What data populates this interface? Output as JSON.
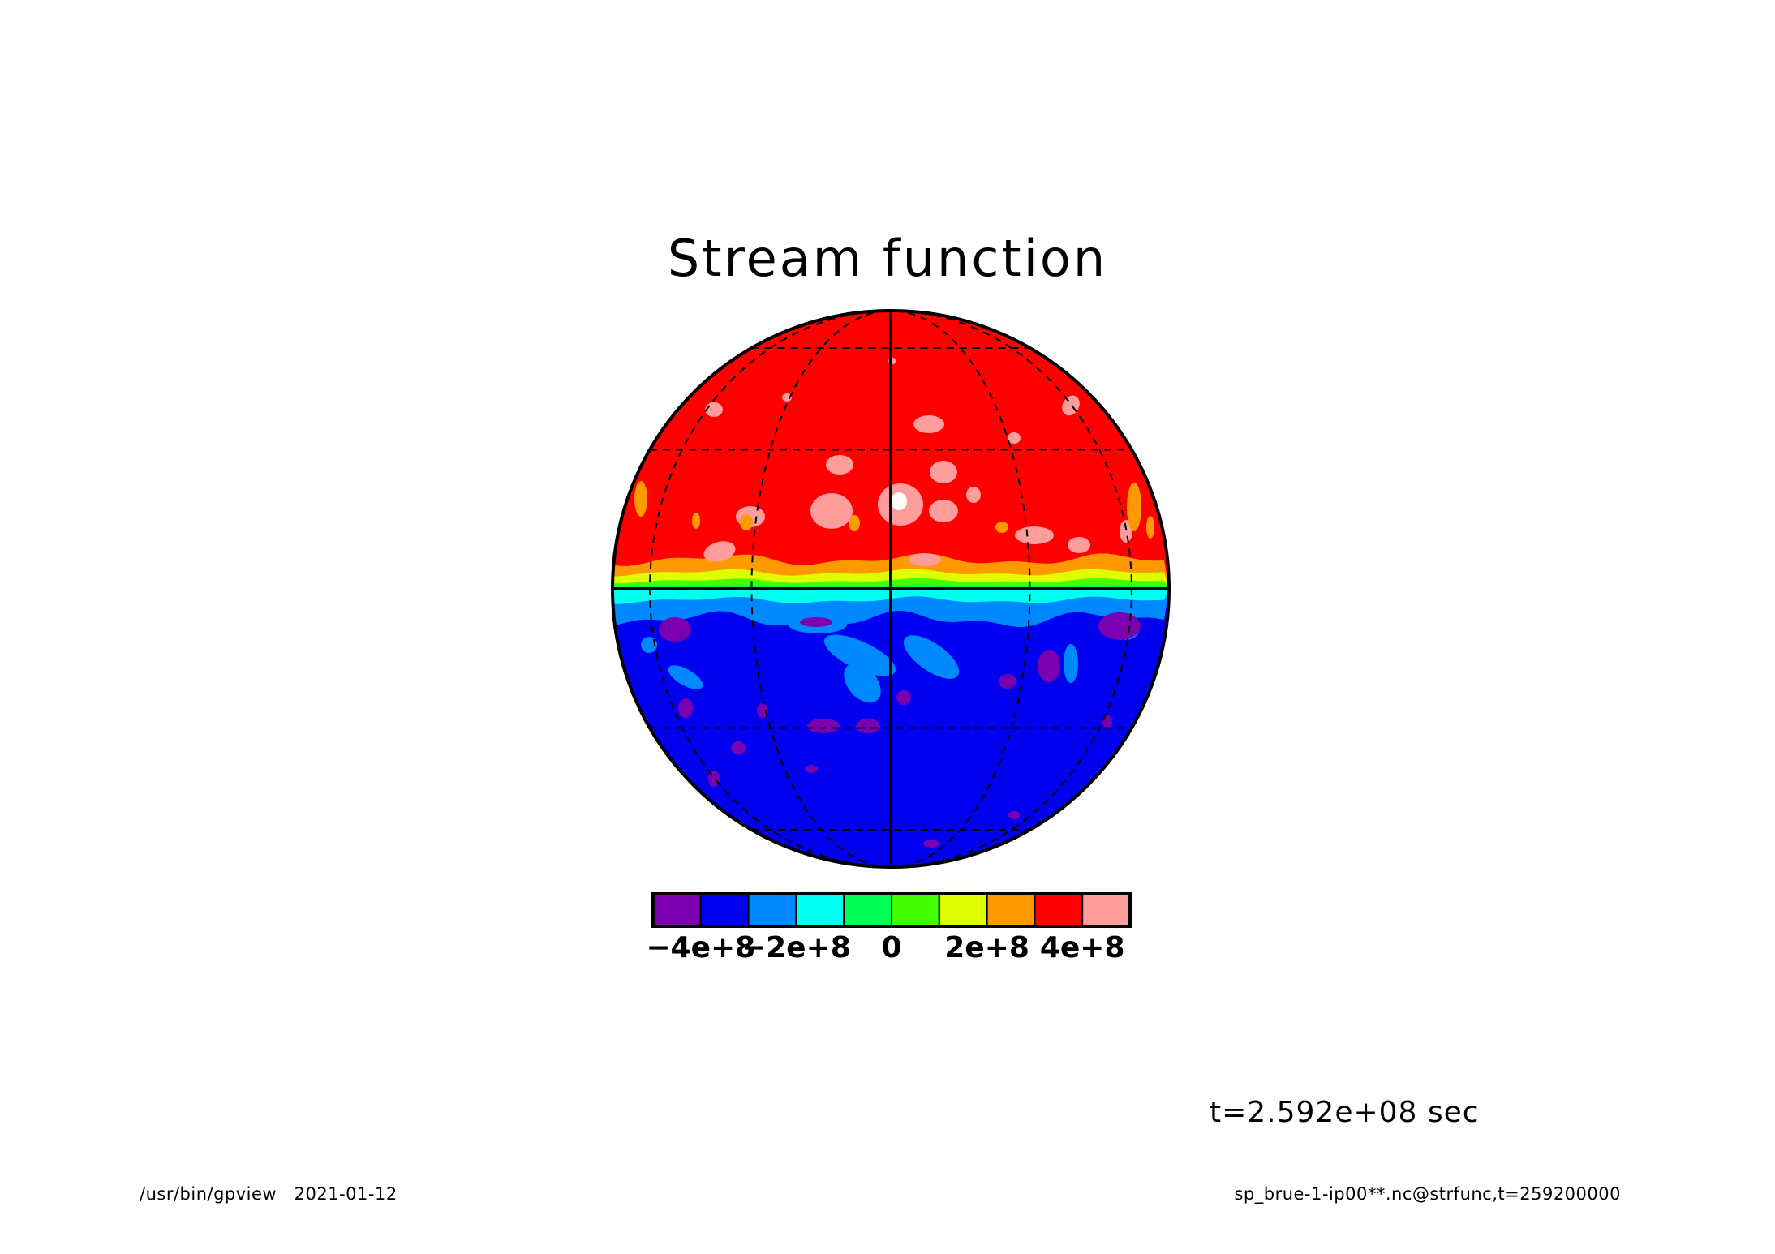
{
  "title": "Stream function",
  "time_label": "t=2.592e+08 sec",
  "footer": {
    "program": "/usr/bin/gpview",
    "date": "2021-01-12",
    "source": "sp_brue-1-ip00**.nc@strfunc,t=259200000"
  },
  "colors": {
    "levels": [
      "#7a00b0",
      "#0000ee",
      "#0088ff",
      "#00ffee",
      "#00ff55",
      "#44ff00",
      "#ddff00",
      "#ff9900",
      "#ff0000",
      "#ff9c9c"
    ],
    "highlight": "#ffffff"
  },
  "colorbar": {
    "ticks": [
      {
        "label": "−4e+8",
        "index": 1
      },
      {
        "label": "−2e+8",
        "index": 3
      },
      {
        "label": "0",
        "index": 5
      },
      {
        "label": "2e+8",
        "index": 7
      },
      {
        "label": "4e+8",
        "index": 9
      }
    ]
  },
  "map": {
    "projection": "orthographic",
    "central_meridian": 0,
    "graticule": {
      "parallels": [
        -60,
        -30,
        30,
        60
      ],
      "meridians": [
        -60,
        -30,
        30,
        60
      ],
      "equator_solid": true,
      "central_meridian_solid": true
    }
  }
}
